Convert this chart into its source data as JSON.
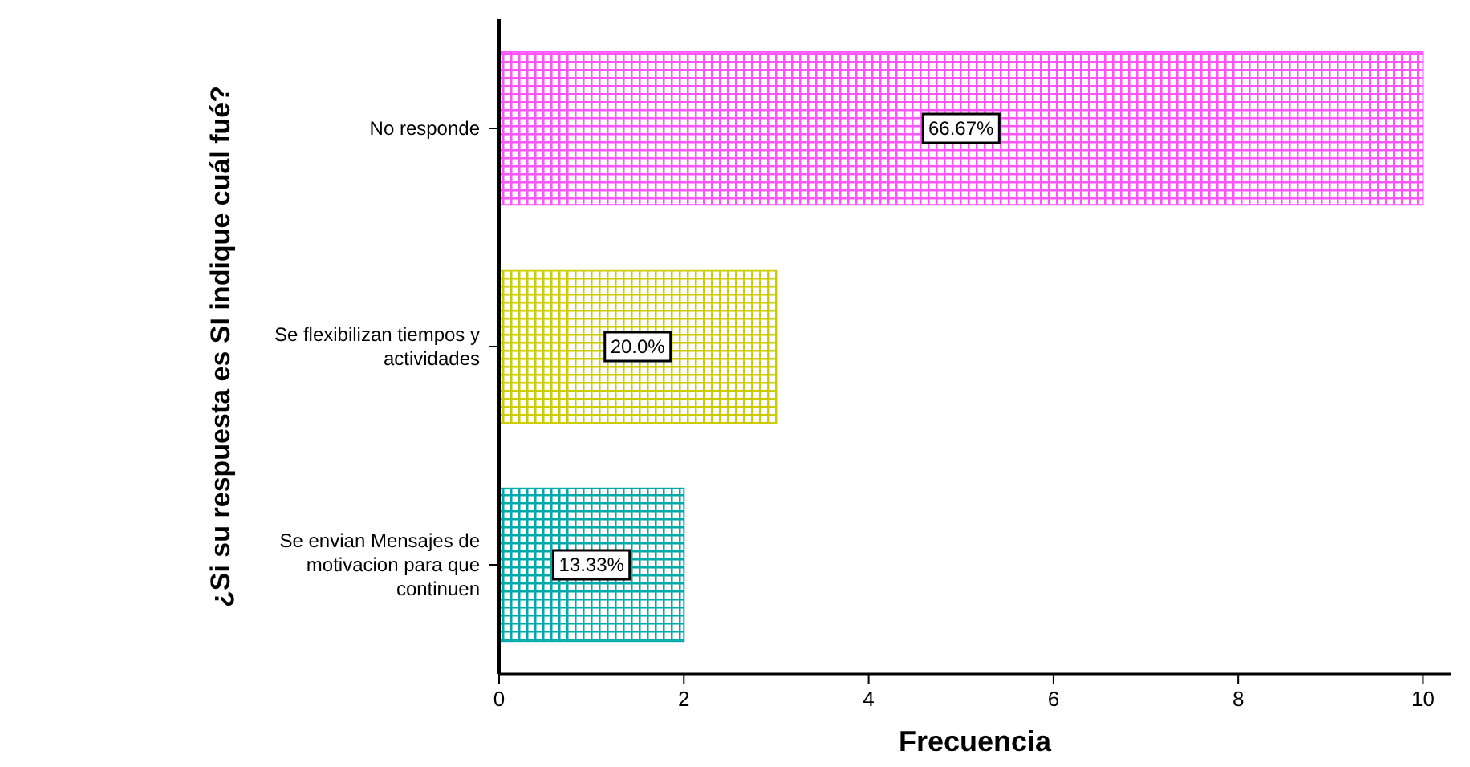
{
  "chart_data": {
    "type": "bar",
    "orientation": "horizontal",
    "xlabel": "Frecuencia",
    "ylabel": "¿Si su respuesta es SI indique cuál fué?",
    "categories": [
      "No responde",
      "Se flexibilizan tiempos y actividades",
      "Se envian Mensajes de motivacion para que continuen"
    ],
    "values": [
      10,
      3,
      2
    ],
    "colors": [
      "#ff55ff",
      "#cccc00",
      "#00aaaa"
    ],
    "annotations": [
      "66.67%",
      "20.0%",
      "13.33%"
    ],
    "xlim": [
      0,
      10.3
    ],
    "xticks": [
      0,
      2,
      4,
      6,
      8,
      10
    ],
    "grid": false
  }
}
